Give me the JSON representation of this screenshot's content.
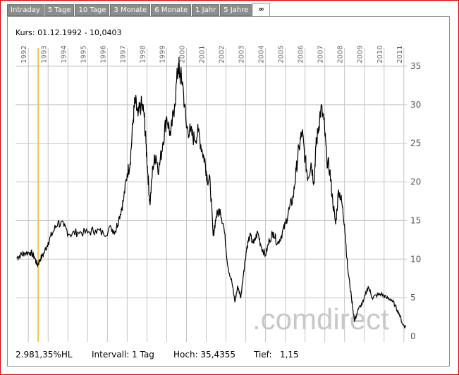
{
  "tabs": [
    {
      "label": "Intraday",
      "active": false
    },
    {
      "label": "5 Tage",
      "active": false
    },
    {
      "label": "10 Tage",
      "active": false
    },
    {
      "label": "3 Monate",
      "active": false
    },
    {
      "label": "6 Monate",
      "active": false
    },
    {
      "label": "1 Jahr",
      "active": false
    },
    {
      "label": "5 Jahre",
      "active": false
    },
    {
      "label": "∞",
      "active": true
    }
  ],
  "kurs_label": "Kurs: 01.12.1992 - 10,0403",
  "watermark": ".comdirect",
  "footer": {
    "performance": "2.981,35%HL",
    "intervall": "Intervall: 1 Tag",
    "hoch": "Hoch: 35,4355",
    "tief": "Tief:   1,15"
  },
  "colors": {
    "price_line": "#000000",
    "highlight": "#f2c34a",
    "grid": "#c4c4c4",
    "frame": "#d40000",
    "watermark": "#c8c8c8"
  },
  "chart_data": {
    "type": "line",
    "x_ticks": [
      "1992",
      "1993",
      "1994",
      "1995",
      "1996",
      "1997",
      "1998",
      "1999",
      "2000",
      "2001",
      "2002",
      "2003",
      "2004",
      "2005",
      "2006",
      "2007",
      "2008",
      "2009",
      "2010",
      "2011"
    ],
    "y_ticks": [
      0,
      5,
      10,
      15,
      20,
      25,
      30,
      35
    ],
    "xlim": [
      1991.85,
      2011.65
    ],
    "ylim": [
      0,
      37
    ],
    "highlight_x": 1993.0,
    "grid": true,
    "series": [
      {
        "x": [
          1991.9,
          1992.1,
          1992.3,
          1992.6,
          1992.8,
          1992.95,
          1993.1,
          1993.3,
          1993.5,
          1993.75,
          1994.0,
          1994.3,
          1994.6,
          1995.0,
          1995.5,
          1995.9,
          1996.3,
          1996.7,
          1996.9,
          1997.1,
          1997.3,
          1997.5,
          1997.65,
          1997.8,
          1997.9,
          1998.05,
          1998.2,
          1998.35,
          1998.45,
          1998.55,
          1998.65,
          1998.8,
          1998.95,
          1999.1,
          1999.3,
          1999.5,
          1999.7,
          1999.9,
          2000.1,
          2000.15,
          2000.3,
          2000.5,
          2000.7,
          2000.9,
          2001.1,
          2001.3,
          2001.45,
          2001.55,
          2001.7,
          2001.85,
          2002.0,
          2002.2,
          2002.4,
          2002.6,
          2002.8,
          2002.95,
          2003.1,
          2003.25,
          2003.4,
          2003.55,
          2003.7,
          2003.9,
          2004.1,
          2004.3,
          2004.5,
          2004.7,
          2004.9,
          2005.1,
          2005.3,
          2005.5,
          2005.7,
          2005.9,
          2006.05,
          2006.2,
          2006.35,
          2006.5,
          2006.65,
          2006.8,
          2006.95,
          2007.05,
          2007.15,
          2007.3,
          2007.45,
          2007.6,
          2007.75,
          2007.9,
          2008.05,
          2008.2,
          2008.35,
          2008.5,
          2008.65,
          2008.85,
          2009.0,
          2009.2,
          2009.45,
          2009.7,
          2009.9,
          2010.1,
          2010.35,
          2010.6,
          2010.85,
          2011.05,
          2011.25,
          2011.45,
          2011.6
        ],
        "y": [
          10.2,
          10.5,
          10.8,
          10.9,
          10.3,
          9.2,
          10.0,
          10.8,
          12.2,
          13.5,
          14.8,
          14.2,
          13.2,
          13.5,
          13.4,
          13.8,
          13.3,
          14.0,
          13.6,
          15.5,
          17.5,
          21.0,
          22.5,
          28.0,
          30.5,
          28.5,
          30.0,
          29.0,
          25.0,
          21.0,
          17.0,
          22.0,
          23.5,
          21.5,
          25.0,
          28.5,
          26.0,
          30.0,
          35.4,
          34.0,
          33.0,
          27.0,
          26.5,
          25.5,
          26.5,
          24.0,
          22.5,
          20.5,
          20.0,
          13.0,
          15.5,
          16.5,
          14.0,
          9.0,
          7.0,
          4.5,
          6.5,
          5.0,
          8.5,
          11.5,
          13.0,
          12.0,
          13.5,
          11.5,
          10.5,
          12.5,
          13.5,
          12.0,
          13.0,
          14.5,
          16.5,
          18.0,
          21.5,
          24.5,
          26.5,
          23.0,
          20.5,
          22.5,
          20.0,
          24.5,
          26.5,
          29.5,
          28.0,
          23.0,
          21.5,
          17.5,
          14.5,
          19.0,
          17.5,
          14.5,
          9.0,
          5.0,
          2.0,
          3.5,
          4.5,
          6.5,
          5.0,
          5.3,
          5.5,
          5.0,
          4.8,
          4.0,
          3.0,
          1.5,
          1.2
        ]
      }
    ]
  }
}
